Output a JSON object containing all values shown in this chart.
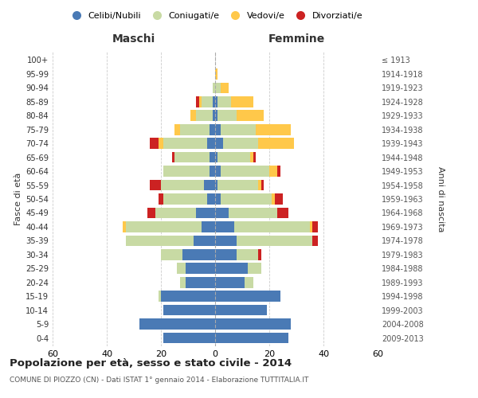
{
  "age_groups": [
    "0-4",
    "5-9",
    "10-14",
    "15-19",
    "20-24",
    "25-29",
    "30-34",
    "35-39",
    "40-44",
    "45-49",
    "50-54",
    "55-59",
    "60-64",
    "65-69",
    "70-74",
    "75-79",
    "80-84",
    "85-89",
    "90-94",
    "95-99",
    "100+"
  ],
  "birth_years": [
    "2009-2013",
    "2004-2008",
    "1999-2003",
    "1994-1998",
    "1989-1993",
    "1984-1988",
    "1979-1983",
    "1974-1978",
    "1969-1973",
    "1964-1968",
    "1959-1963",
    "1954-1958",
    "1949-1953",
    "1944-1948",
    "1939-1943",
    "1934-1938",
    "1929-1933",
    "1924-1928",
    "1919-1923",
    "1914-1918",
    "≤ 1913"
  ],
  "colors": {
    "celibi": "#4a7ab5",
    "coniugati": "#c8daa4",
    "vedovi": "#ffc84a",
    "divorziati": "#cc2222",
    "background": "#ffffff",
    "grid": "#cccccc"
  },
  "maschi": {
    "celibi": [
      19,
      28,
      19,
      20,
      11,
      11,
      12,
      8,
      5,
      7,
      3,
      4,
      2,
      2,
      3,
      2,
      1,
      1,
      0,
      0,
      0
    ],
    "coniugati": [
      0,
      0,
      0,
      1,
      2,
      3,
      8,
      25,
      28,
      15,
      16,
      16,
      17,
      13,
      16,
      11,
      6,
      4,
      1,
      0,
      0
    ],
    "vedovi": [
      0,
      0,
      0,
      0,
      0,
      0,
      0,
      0,
      1,
      0,
      0,
      0,
      0,
      0,
      2,
      2,
      2,
      1,
      0,
      0,
      0
    ],
    "divorziati": [
      0,
      0,
      0,
      0,
      0,
      0,
      0,
      0,
      0,
      3,
      2,
      4,
      0,
      1,
      3,
      0,
      0,
      1,
      0,
      0,
      0
    ]
  },
  "femmine": {
    "celibi": [
      27,
      28,
      19,
      24,
      11,
      12,
      8,
      8,
      7,
      5,
      2,
      1,
      2,
      1,
      3,
      2,
      1,
      1,
      0,
      0,
      0
    ],
    "coniugati": [
      0,
      0,
      0,
      0,
      3,
      5,
      8,
      28,
      28,
      18,
      19,
      15,
      18,
      12,
      13,
      13,
      7,
      5,
      2,
      0,
      0
    ],
    "vedovi": [
      0,
      0,
      0,
      0,
      0,
      0,
      0,
      0,
      1,
      0,
      1,
      1,
      3,
      1,
      13,
      13,
      10,
      8,
      3,
      1,
      0
    ],
    "divorziati": [
      0,
      0,
      0,
      0,
      0,
      0,
      1,
      2,
      2,
      4,
      3,
      1,
      1,
      1,
      0,
      0,
      0,
      0,
      0,
      0,
      0
    ]
  },
  "xlim": 60,
  "title": "Popolazione per età, sesso e stato civile - 2014",
  "subtitle": "COMUNE DI PIOZZO (CN) - Dati ISTAT 1° gennaio 2014 - Elaborazione TUTTITALIA.IT",
  "ylabel_left": "Fasce di età",
  "ylabel_right": "Anni di nascita",
  "xlabel_left": "Maschi",
  "xlabel_right": "Femmine"
}
